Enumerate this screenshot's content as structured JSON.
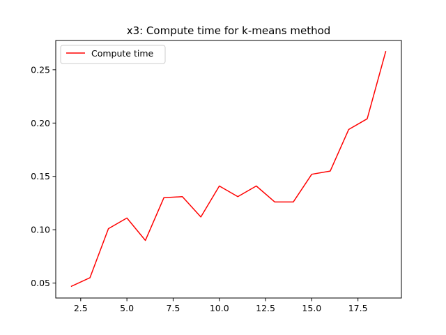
{
  "chart_data": {
    "type": "line",
    "title": "x3: Compute time for k-means method",
    "xlabel": "",
    "ylabel": "",
    "x": [
      2,
      3,
      4,
      5,
      6,
      7,
      8,
      9,
      10,
      11,
      12,
      13,
      14,
      15,
      16,
      17,
      18,
      19
    ],
    "series": [
      {
        "name": "Compute time",
        "color": "#ff0000",
        "values": [
          0.047,
          0.055,
          0.101,
          0.111,
          0.09,
          0.13,
          0.131,
          0.112,
          0.141,
          0.131,
          0.141,
          0.126,
          0.126,
          0.152,
          0.155,
          0.194,
          0.204,
          0.267
        ]
      }
    ],
    "xlim": [
      1.15,
      19.85
    ],
    "ylim": [
      0.036,
      0.2774
    ],
    "xticks": [
      "2.5",
      "5.0",
      "7.5",
      "10.0",
      "12.5",
      "15.0",
      "17.5"
    ],
    "xtick_values": [
      2.5,
      5.0,
      7.5,
      10.0,
      12.5,
      15.0,
      17.5
    ],
    "yticks": [
      "0.05",
      "0.10",
      "0.15",
      "0.20",
      "0.25"
    ],
    "ytick_values": [
      0.05,
      0.1,
      0.15,
      0.2,
      0.25
    ],
    "legend_position": "top-left",
    "grid": false
  }
}
